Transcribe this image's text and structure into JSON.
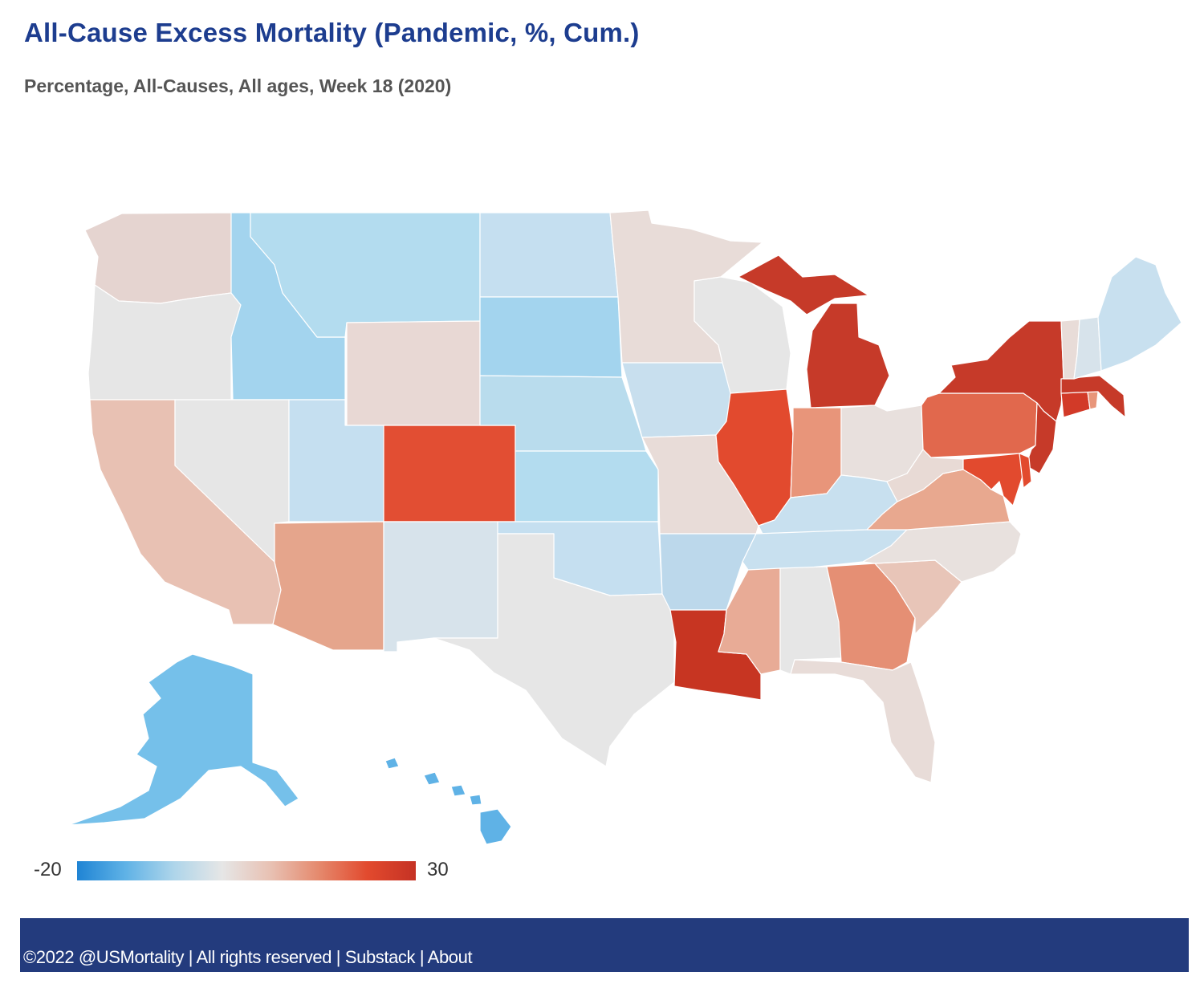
{
  "header": {
    "title": "All-Cause Excess Mortality (Pandemic, %, Cum.)",
    "subtitle": "Percentage, All-Causes, All ages, Week 18 (2020)"
  },
  "legend": {
    "min_label": "-20",
    "max_label": "30",
    "min": -20,
    "max": 30,
    "colors": [
      "#1f84d4",
      "#5fb2e6",
      "#aed5ea",
      "#e6e6e6",
      "#e8c1b3",
      "#e5896d",
      "#e24a2e",
      "#c53224"
    ]
  },
  "footer": {
    "copyright": "©2022 @USMortality",
    "rights": "All rights reserved",
    "substack": "Substack",
    "about": "About",
    "separator": " | ",
    "background": "#233b7d"
  },
  "map_data": {
    "type": "choropleth",
    "metric": "excess mortality %",
    "border_color": "#ffffff",
    "states": [
      {
        "id": "WA",
        "color": "#e5d4d0"
      },
      {
        "id": "OR",
        "color": "#e6e6e6"
      },
      {
        "id": "CA",
        "color": "#e8c1b3"
      },
      {
        "id": "ID",
        "color": "#a3d4ee"
      },
      {
        "id": "NV",
        "color": "#e6e6e6"
      },
      {
        "id": "MT",
        "color": "#b3dcef"
      },
      {
        "id": "WY",
        "color": "#e8d8d4"
      },
      {
        "id": "UT",
        "color": "#c5dff0"
      },
      {
        "id": "AZ",
        "color": "#e5a58c"
      },
      {
        "id": "CO",
        "color": "#e24e33"
      },
      {
        "id": "NM",
        "color": "#d7e3eb"
      },
      {
        "id": "ND",
        "color": "#c5dff0"
      },
      {
        "id": "SD",
        "color": "#a3d4ee"
      },
      {
        "id": "NE",
        "color": "#b9dced"
      },
      {
        "id": "KS",
        "color": "#b3dcef"
      },
      {
        "id": "OK",
        "color": "#c5dff0"
      },
      {
        "id": "TX",
        "color": "#e6e6e6"
      },
      {
        "id": "MN",
        "color": "#e8dcd8"
      },
      {
        "id": "IA",
        "color": "#c8dfee"
      },
      {
        "id": "MO",
        "color": "#e8dcd8"
      },
      {
        "id": "AR",
        "color": "#bcd8eb"
      },
      {
        "id": "LA",
        "color": "#c73522"
      },
      {
        "id": "WI",
        "color": "#e6e6e6"
      },
      {
        "id": "IL",
        "color": "#e24a2e"
      },
      {
        "id": "MI",
        "color": "#c63a29"
      },
      {
        "id": "IN",
        "color": "#e8957a"
      },
      {
        "id": "OH",
        "color": "#e8e0dd"
      },
      {
        "id": "KY",
        "color": "#c8e0ef"
      },
      {
        "id": "TN",
        "color": "#c8e0ef"
      },
      {
        "id": "MS",
        "color": "#e8ab96"
      },
      {
        "id": "AL",
        "color": "#e6e6e6"
      },
      {
        "id": "GA",
        "color": "#e58f74"
      },
      {
        "id": "FL",
        "color": "#e8dcd8"
      },
      {
        "id": "SC",
        "color": "#e8c5b8"
      },
      {
        "id": "NC",
        "color": "#e8e1de"
      },
      {
        "id": "VA",
        "color": "#e8a88f"
      },
      {
        "id": "WV",
        "color": "#e8dad5"
      },
      {
        "id": "PA",
        "color": "#e1684d"
      },
      {
        "id": "NY",
        "color": "#c63a29"
      },
      {
        "id": "NJ",
        "color": "#c63a29"
      },
      {
        "id": "MD",
        "color": "#e24a2e"
      },
      {
        "id": "DE",
        "color": "#e24a2e"
      },
      {
        "id": "CT",
        "color": "#d23a28"
      },
      {
        "id": "RI",
        "color": "#e8957a"
      },
      {
        "id": "MA",
        "color": "#c63a29"
      },
      {
        "id": "VT",
        "color": "#e8dcd8"
      },
      {
        "id": "NH",
        "color": "#d7e3eb"
      },
      {
        "id": "ME",
        "color": "#c8e0ef"
      },
      {
        "id": "AK",
        "color": "#75c0ea"
      },
      {
        "id": "HI",
        "color": "#5fb2e6"
      }
    ]
  }
}
